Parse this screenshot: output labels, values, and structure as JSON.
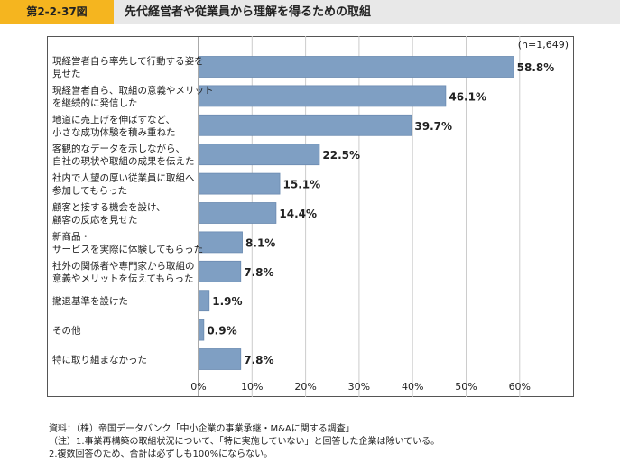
{
  "header": {
    "figure_number": "第2-2-37図",
    "title": "先代経営者や従業員から理解を得るための取組"
  },
  "chart_data": {
    "type": "bar",
    "orientation": "horizontal",
    "sample_size_label": "(n=1,649)",
    "categories": [
      [
        "現経営者自ら率先して行動する姿を",
        "見せた"
      ],
      [
        "現経営者自ら、取組の意義やメリット",
        "を継続的に発信した"
      ],
      [
        "地道に売上げを伸ばすなど、",
        "小さな成功体験を積み重ねた"
      ],
      [
        "客観的なデータを示しながら、",
        "自社の現状や取組の成果を伝えた"
      ],
      [
        "社内で人望の厚い従業員に取組へ",
        "参加してもらった"
      ],
      [
        "顧客と接する機会を設け、",
        "顧客の反応を見せた"
      ],
      [
        "新商品・",
        "サービスを実際に体験してもらった"
      ],
      [
        "社外の関係者や専門家から取組の",
        "意義やメリットを伝えてもらった"
      ],
      [
        "撤退基準を設けた"
      ],
      [
        "その他"
      ],
      [
        "特に取り組まなかった"
      ]
    ],
    "values": [
      58.8,
      46.1,
      39.7,
      22.5,
      15.1,
      14.4,
      8.1,
      7.8,
      1.9,
      0.9,
      7.8
    ],
    "value_labels": [
      "58.8%",
      "46.1%",
      "39.7%",
      "22.5%",
      "15.1%",
      "14.4%",
      "8.1%",
      "7.8%",
      "1.9%",
      "0.9%",
      "7.8%"
    ],
    "xlim": [
      0,
      60
    ],
    "x_ticks": [
      0,
      10,
      20,
      30,
      40,
      50,
      60
    ],
    "x_tick_labels": [
      "0%",
      "10%",
      "20%",
      "30%",
      "40%",
      "50%",
      "60%"
    ],
    "bar_color": "#7f9fc3",
    "bar_edge_color": "#6b8bb1",
    "grid": "vertical",
    "grid_color": "#cccccc",
    "legend": "none"
  },
  "notes": {
    "line1": "資料：（株）帝国データバンク「中小企業の事業承継・M&Aに関する調査」",
    "line2": "（注）1.事業再構築の取組状況について、「特に実施していない」と回答した企業は除いている。",
    "line3": "2.複数回答のため、合計は必ずしも100%にならない。"
  }
}
